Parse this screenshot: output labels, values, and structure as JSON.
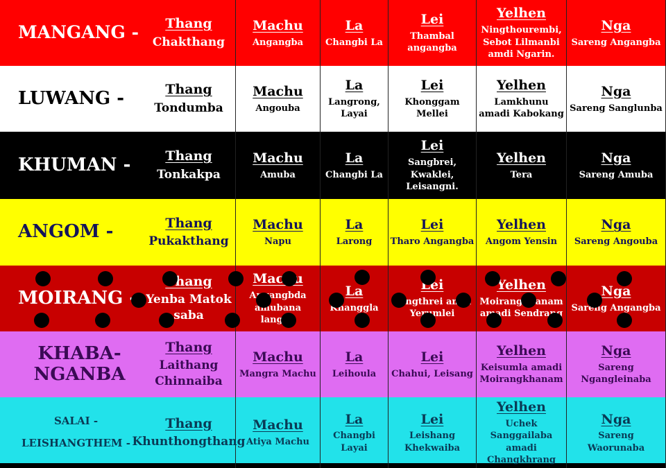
{
  "headers": {
    "thang": "Thang",
    "machu": "Machu",
    "la": "La",
    "lei": "Lei",
    "yelhen": "Yelhen",
    "nga": "Nga"
  },
  "rows": [
    {
      "clan": "MANGANG -",
      "bg": "#ff0000",
      "fg": "#ffffff",
      "thang": "Chakthang",
      "machu": "Angangba",
      "la": "Changbi La",
      "lei": "Thambal angangba",
      "yelhen": "Ningthourembi, Sebot Lilmanbi amdi Ngarin.",
      "nga": "Sareng Angangba"
    },
    {
      "clan": "LUWANG -",
      "bg": "#ffffff",
      "fg": "#000000",
      "thang": "Tondumba",
      "machu": "Angouba",
      "la": "Langrong, Layai",
      "lei": "Khonggam Mellei",
      "yelhen": "Lamkhunu amadi Kabokang",
      "nga": "Sareng Sanglunba"
    },
    {
      "clan": "KHUMAN -",
      "bg": "#000000",
      "fg": "#ffffff",
      "thang": "Tonkakpa",
      "machu": "Amuba",
      "la": "Changbi La",
      "lei": "Sangbrei, Kwaklei, Leisangni.",
      "yelhen": "Tera",
      "nga": "Sareng Amuba"
    },
    {
      "clan": "ANGOM -",
      "bg": "#ffff00",
      "fg": "#14145a",
      "thang": "Pukakthang",
      "machu": "Napu",
      "la": "Larong",
      "lei": "Tharo Angangba",
      "yelhen": "Angom Yensin",
      "nga": "Sareng Angouba"
    },
    {
      "clan": "MOIRANG -",
      "bg": "#c80000",
      "fg": "#ffffff",
      "thang": "Yenba Matok saba",
      "machu": "Angangbda amubana langba",
      "la": "Khanggla",
      "lei": "Langthrei amdi Yerumlei",
      "yelhen": "Moirangkhanam amadi Sendrang",
      "nga": "Sareng Angangba"
    },
    {
      "clan": "KHABA- NGANBA",
      "bg": "#df6cf2",
      "fg": "#3a0a55",
      "thang": "Laithang Chinnaiba",
      "machu": "Mangra Machu",
      "la": "Leihoula",
      "lei": "Chahui, Leisang",
      "yelhen": "Keisumla amadi Moirangkhanam",
      "nga": "Sareng Ngangleinaba"
    },
    {
      "clan": "SALAI - LEISHANGTHEM -",
      "bg": "#22e2ea",
      "fg": "#0a3a55",
      "thang": "Khunthongthang",
      "machu": "Atiya Machu",
      "la": "Changbi Layai",
      "lei": "Leishang Khekwaiba",
      "yelhen": "Uchek Sanggailaba amadi Changkhrang",
      "nga": "Sareng Waorunaba"
    }
  ]
}
